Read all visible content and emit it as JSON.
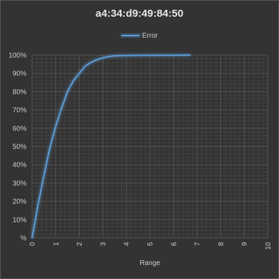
{
  "chart_data": {
    "type": "line",
    "title": "a4:34:d9:49:84:50",
    "xlabel": "Range",
    "ylabel": "",
    "legend": "top-center",
    "grid": true,
    "xlim": [
      0,
      10
    ],
    "ylim": [
      0,
      100
    ],
    "x_ticks": [
      "0",
      "1",
      "2",
      "3",
      "4",
      "5",
      "6",
      "7",
      "8",
      "9",
      "10"
    ],
    "y_ticks": [
      "%",
      "10%",
      "20%",
      "30%",
      "40%",
      "50%",
      "60%",
      "70%",
      "80%",
      "90%",
      "100%"
    ],
    "series": [
      {
        "name": "Error",
        "color": "#5b9bd5",
        "x": [
          0,
          0.25,
          0.5,
          0.75,
          1.0,
          1.25,
          1.5,
          1.75,
          2.0,
          2.25,
          2.5,
          2.75,
          3.0,
          3.25,
          3.5,
          3.75,
          4.0,
          4.5,
          5.0,
          5.5,
          6.0,
          6.5,
          6.7
        ],
        "y": [
          0,
          18,
          34,
          49,
          61,
          71,
          80,
          86,
          90,
          94,
          96,
          97.5,
          98.5,
          99.2,
          99.6,
          99.75,
          99.8,
          99.85,
          99.9,
          99.9,
          99.95,
          100,
          100
        ]
      }
    ]
  }
}
